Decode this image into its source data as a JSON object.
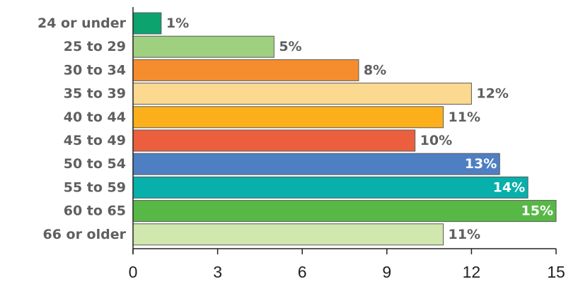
{
  "chart_data": {
    "type": "bar",
    "orientation": "horizontal",
    "categories": [
      "24 or under",
      "25 to 29",
      "30 to 34",
      "35 to 39",
      "40 to 44",
      "45 to 49",
      "50 to 54",
      "55 to 59",
      "60 to 65",
      "66 or older"
    ],
    "values": [
      1,
      5,
      8,
      12,
      11,
      10,
      13,
      14,
      15,
      11
    ],
    "value_labels": [
      "1%",
      "5%",
      "8%",
      "12%",
      "11%",
      "10%",
      "13%",
      "14%",
      "15%",
      "11%"
    ],
    "colors": [
      "#0ca36e",
      "#9fd07f",
      "#f58d2e",
      "#fcd990",
      "#fbb01b",
      "#ec5f3e",
      "#4f7fc3",
      "#07b0aa",
      "#58b846",
      "#d0e7ad"
    ],
    "label_inside": [
      false,
      false,
      false,
      false,
      false,
      false,
      true,
      true,
      true,
      false
    ],
    "xticks": [
      0,
      3,
      6,
      9,
      12,
      15
    ],
    "xlim": [
      0,
      15
    ],
    "title": "",
    "xlabel": "",
    "ylabel": "",
    "grid": false,
    "legend": "none"
  }
}
